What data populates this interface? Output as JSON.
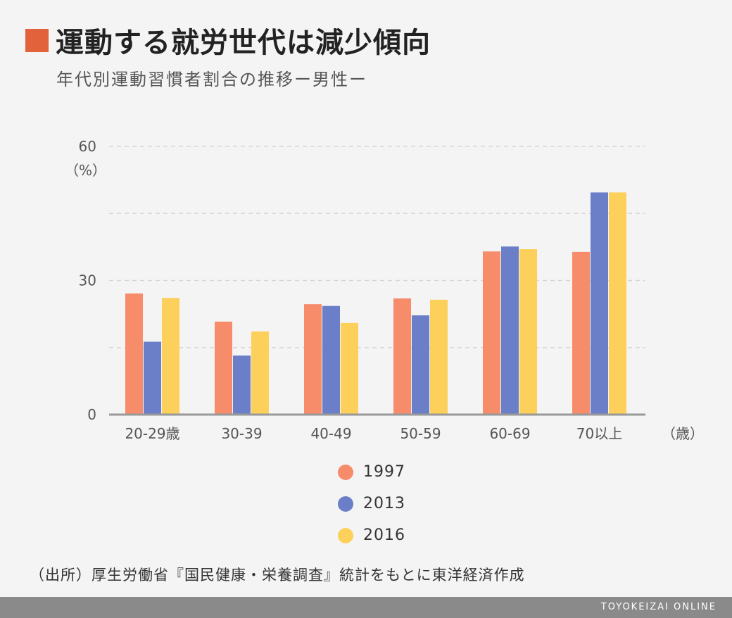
{
  "header": {
    "title": "運動する就労世代は減少傾向",
    "subtitle": "年代別運動習慣者割合の推移ー男性ー",
    "accent_color": "#e2623c"
  },
  "source_note": "（出所）厚生労働省『国民健康・栄養調査』統計をもとに東洋経済作成",
  "footer": {
    "brand": "TOYOKEIZAI ONLINE",
    "color": "#8a8a8a"
  },
  "chart_data": {
    "type": "bar",
    "title": "運動する就労世代は減少傾向",
    "subtitle": "年代別運動習慣者割合の推移ー男性ー",
    "categories": [
      "20-29歳",
      "30-39",
      "40-49",
      "50-59",
      "60-69",
      "70以上"
    ],
    "series": [
      {
        "name": "1997",
        "color": "#f78c6b",
        "values": [
          27.1,
          20.8,
          24.7,
          26.0,
          36.5,
          36.4
        ]
      },
      {
        "name": "2013",
        "color": "#6a7fc8",
        "values": [
          16.3,
          13.2,
          24.3,
          22.2,
          37.6,
          49.7
        ]
      },
      {
        "name": "2016",
        "color": "#fcd05a",
        "values": [
          26.1,
          18.6,
          20.5,
          25.7,
          37.0,
          49.7
        ]
      }
    ],
    "yticks": [
      0,
      30,
      60
    ],
    "ylim": [
      0,
      60
    ],
    "ylabel": "（%）",
    "xlabel": "（歳）",
    "grid": true,
    "legend": "bottom-center"
  }
}
